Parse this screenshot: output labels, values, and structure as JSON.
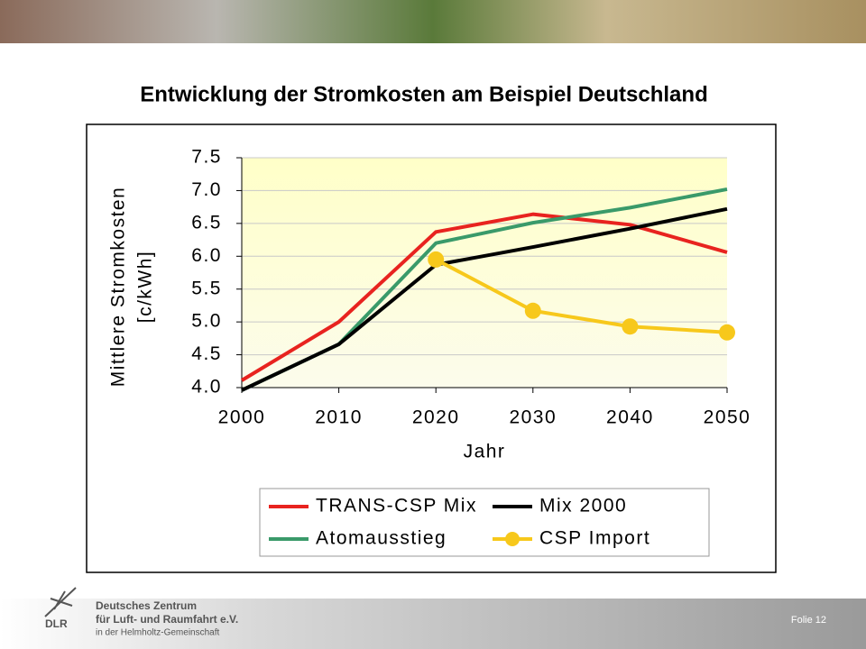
{
  "chart_data": {
    "type": "line",
    "title": "Entwicklung der Stromkosten am Beispiel Deutschland",
    "ylabel": [
      "Mittlere Stromkosten",
      "[c/kWh]"
    ],
    "xlabel": "Jahr",
    "x": [
      2000,
      2010,
      2020,
      2030,
      2040,
      2050
    ],
    "xlim": [
      2000,
      2050
    ],
    "xticks": [
      2000,
      2010,
      2020,
      2030,
      2040,
      2050
    ],
    "ylim": [
      4,
      7.5
    ],
    "yticks": [
      {
        "value": 4,
        "label": "4.0"
      },
      4.5,
      {
        "value": 5,
        "label": "5.0"
      },
      5.5,
      {
        "value": 6,
        "label": "6.0"
      },
      6.5,
      {
        "value": 7,
        "label": "7.0"
      },
      7.5
    ],
    "grid": true,
    "series": [
      {
        "name": "TRANS-CSP Mix",
        "color": "#e8231f",
        "values": [
          4.11,
          5.0,
          6.37,
          6.64,
          6.48,
          6.06
        ]
      },
      {
        "name": "Mix 2000",
        "color": "#000000",
        "values": [
          3.96,
          4.66,
          5.87,
          6.14,
          6.42,
          6.72
        ]
      },
      {
        "name": "Atomausstieg",
        "color": "#3a9a6a",
        "values": [
          3.96,
          4.66,
          6.2,
          6.51,
          6.74,
          7.02
        ]
      },
      {
        "name": "CSP Import",
        "color": "#f7c81b",
        "markers": true,
        "values": [
          null,
          null,
          5.95,
          5.17,
          4.93,
          4.84
        ]
      }
    ]
  },
  "footer": {
    "org_line1": "Deutsches Zentrum",
    "org_line2": "für Luft- und Raumfahrt e.V.",
    "org_line3": "in der Helmholtz-Gemeinschaft",
    "logo": "DLR",
    "slide": "Folie 12"
  }
}
